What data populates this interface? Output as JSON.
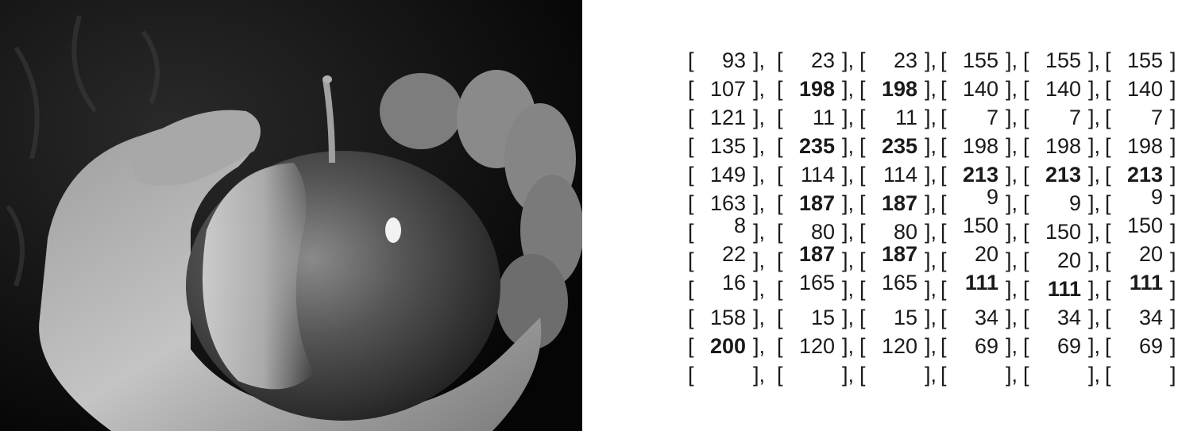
{
  "matrix": {
    "rows": [
      [
        {
          "v": "93",
          "b": false,
          "o": "mid"
        },
        {
          "v": "23",
          "b": false,
          "o": "mid"
        },
        {
          "v": "23",
          "b": false,
          "o": "mid"
        },
        {
          "v": "155",
          "b": false,
          "o": "mid"
        },
        {
          "v": "155",
          "b": false,
          "o": "mid"
        },
        {
          "v": "155",
          "b": false,
          "o": "mid"
        }
      ],
      [
        {
          "v": "107",
          "b": false,
          "o": "mid"
        },
        {
          "v": "198",
          "b": true,
          "o": "mid"
        },
        {
          "v": "198",
          "b": true,
          "o": "mid"
        },
        {
          "v": "140",
          "b": false,
          "o": "mid"
        },
        {
          "v": "140",
          "b": false,
          "o": "mid"
        },
        {
          "v": "140",
          "b": false,
          "o": "mid"
        }
      ],
      [
        {
          "v": "121",
          "b": false,
          "o": "mid"
        },
        {
          "v": "11",
          "b": false,
          "o": "mid"
        },
        {
          "v": "11",
          "b": false,
          "o": "mid"
        },
        {
          "v": "7",
          "b": false,
          "o": "mid"
        },
        {
          "v": "7",
          "b": false,
          "o": "mid"
        },
        {
          "v": "7",
          "b": false,
          "o": "mid"
        }
      ],
      [
        {
          "v": "135",
          "b": false,
          "o": "mid"
        },
        {
          "v": "235",
          "b": true,
          "o": "mid"
        },
        {
          "v": "235",
          "b": true,
          "o": "mid"
        },
        {
          "v": "198",
          "b": false,
          "o": "mid"
        },
        {
          "v": "198",
          "b": false,
          "o": "mid"
        },
        {
          "v": "198",
          "b": false,
          "o": "mid"
        }
      ],
      [
        {
          "v": "149",
          "b": false,
          "o": "mid"
        },
        {
          "v": "114",
          "b": false,
          "o": "mid"
        },
        {
          "v": "114",
          "b": false,
          "o": "mid"
        },
        {
          "v": "213",
          "b": true,
          "o": "mid"
        },
        {
          "v": "213",
          "b": true,
          "o": "mid"
        },
        {
          "v": "213",
          "b": true,
          "o": "mid"
        }
      ],
      [
        {
          "v": "163",
          "b": false,
          "o": "mid"
        },
        {
          "v": "187",
          "b": true,
          "o": "mid"
        },
        {
          "v": "187",
          "b": true,
          "o": "mid"
        },
        {
          "v": "9",
          "b": false,
          "o": "high"
        },
        {
          "v": "9",
          "b": false,
          "o": "mid"
        },
        {
          "v": "9",
          "b": false,
          "o": "high"
        }
      ],
      [
        {
          "v": "8",
          "b": false,
          "o": "high"
        },
        {
          "v": "80",
          "b": false,
          "o": "mid"
        },
        {
          "v": "80",
          "b": false,
          "o": "mid"
        },
        {
          "v": "150",
          "b": false,
          "o": "high"
        },
        {
          "v": "150",
          "b": false,
          "o": "mid"
        },
        {
          "v": "150",
          "b": false,
          "o": "high"
        }
      ],
      [
        {
          "v": "22",
          "b": false,
          "o": "high"
        },
        {
          "v": "187",
          "b": true,
          "o": "high"
        },
        {
          "v": "187",
          "b": true,
          "o": "high"
        },
        {
          "v": "20",
          "b": false,
          "o": "high"
        },
        {
          "v": "20",
          "b": false,
          "o": "mid"
        },
        {
          "v": "20",
          "b": false,
          "o": "high"
        }
      ],
      [
        {
          "v": "16",
          "b": false,
          "o": "high"
        },
        {
          "v": "165",
          "b": false,
          "o": "high"
        },
        {
          "v": "165",
          "b": false,
          "o": "high"
        },
        {
          "v": "111",
          "b": true,
          "o": "high"
        },
        {
          "v": "111",
          "b": true,
          "o": "mid"
        },
        {
          "v": "111",
          "b": true,
          "o": "high"
        }
      ],
      [
        {
          "v": "158",
          "b": false,
          "o": "mid"
        },
        {
          "v": "15",
          "b": false,
          "o": "mid"
        },
        {
          "v": "15",
          "b": false,
          "o": "mid"
        },
        {
          "v": "34",
          "b": false,
          "o": "mid"
        },
        {
          "v": "34",
          "b": false,
          "o": "mid"
        },
        {
          "v": "34",
          "b": false,
          "o": "mid"
        }
      ],
      [
        {
          "v": "200",
          "b": true,
          "o": "mid"
        },
        {
          "v": "120",
          "b": false,
          "o": "mid"
        },
        {
          "v": "120",
          "b": false,
          "o": "mid"
        },
        {
          "v": "69",
          "b": false,
          "o": "mid"
        },
        {
          "v": "69",
          "b": false,
          "o": "mid"
        },
        {
          "v": "69",
          "b": false,
          "o": "mid"
        }
      ],
      [
        {
          "v": "",
          "b": false,
          "o": "mid"
        },
        {
          "v": "",
          "b": false,
          "o": "mid"
        },
        {
          "v": "",
          "b": false,
          "o": "mid"
        },
        {
          "v": "",
          "b": false,
          "o": "mid"
        },
        {
          "v": "",
          "b": false,
          "o": "mid"
        },
        {
          "v": "",
          "b": false,
          "o": "mid"
        }
      ]
    ],
    "bracket_open": "[",
    "bracket_close": "]",
    "separator": ","
  },
  "photo": {
    "subject": "hand-holding-apple-icon"
  }
}
